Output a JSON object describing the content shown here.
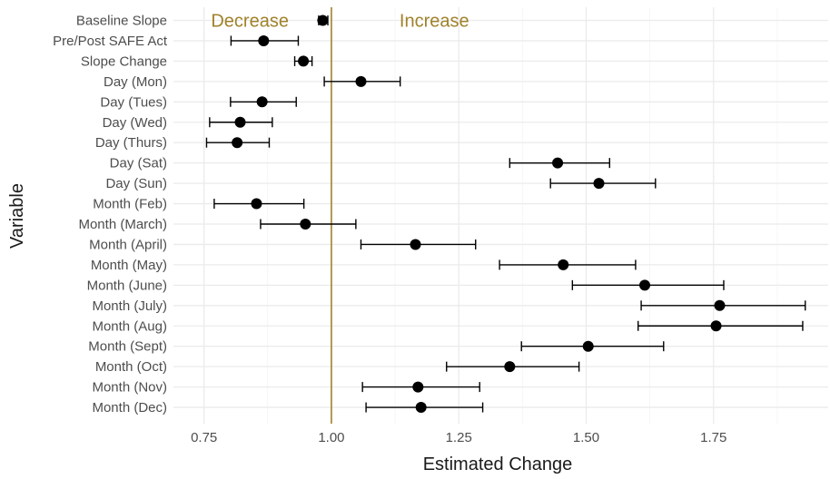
{
  "chart_data": {
    "type": "scatter",
    "subtype": "forest-plot",
    "xlabel": "Estimated Change",
    "ylabel": "Variable",
    "xlim": [
      0.69,
      1.975
    ],
    "x_ticks": [
      0.75,
      1.0,
      1.25,
      1.5,
      1.75
    ],
    "x_tick_labels": [
      "0.75",
      "1.00",
      "1.25",
      "1.50",
      "1.75"
    ],
    "grid": true,
    "reference_line": {
      "x": 1.0,
      "color": "#a0822a"
    },
    "annotations": [
      {
        "text": "Decrease",
        "x": 0.84,
        "row": 0,
        "color": "#a0822a"
      },
      {
        "text": "Increase",
        "x": 1.202,
        "row": 0,
        "color": "#a0822a"
      }
    ],
    "variables": [
      {
        "label": "Baseline Slope",
        "estimate": 0.983,
        "lower": 0.975,
        "upper": 0.993
      },
      {
        "label": "Pre/Post SAFE Act",
        "estimate": 0.867,
        "lower": 0.803,
        "upper": 0.935
      },
      {
        "label": "Slope Change",
        "estimate": 0.945,
        "lower": 0.928,
        "upper": 0.962
      },
      {
        "label": "Day (Mon)",
        "estimate": 1.058,
        "lower": 0.986,
        "upper": 1.135
      },
      {
        "label": "Day (Tues)",
        "estimate": 0.864,
        "lower": 0.802,
        "upper": 0.931
      },
      {
        "label": "Day (Wed)",
        "estimate": 0.821,
        "lower": 0.761,
        "upper": 0.884
      },
      {
        "label": "Day (Thurs)",
        "estimate": 0.815,
        "lower": 0.755,
        "upper": 0.878
      },
      {
        "label": "Day (Sat)",
        "estimate": 1.444,
        "lower": 1.35,
        "upper": 1.546
      },
      {
        "label": "Day (Sun)",
        "estimate": 1.525,
        "lower": 1.43,
        "upper": 1.636
      },
      {
        "label": "Month (Feb)",
        "estimate": 0.853,
        "lower": 0.77,
        "upper": 0.946
      },
      {
        "label": "Month (March)",
        "estimate": 0.949,
        "lower": 0.861,
        "upper": 1.048
      },
      {
        "label": "Month (April)",
        "estimate": 1.165,
        "lower": 1.058,
        "upper": 1.283
      },
      {
        "label": "Month (May)",
        "estimate": 1.455,
        "lower": 1.33,
        "upper": 1.597
      },
      {
        "label": "Month (June)",
        "estimate": 1.615,
        "lower": 1.473,
        "upper": 1.77
      },
      {
        "label": "Month (July)",
        "estimate": 1.762,
        "lower": 1.608,
        "upper": 1.93
      },
      {
        "label": "Month (Aug)",
        "estimate": 1.755,
        "lower": 1.602,
        "upper": 1.925
      },
      {
        "label": "Month (Sept)",
        "estimate": 1.504,
        "lower": 1.373,
        "upper": 1.652
      },
      {
        "label": "Month (Oct)",
        "estimate": 1.35,
        "lower": 1.226,
        "upper": 1.486
      },
      {
        "label": "Month (Nov)",
        "estimate": 1.17,
        "lower": 1.061,
        "upper": 1.291
      },
      {
        "label": "Month (Dec)",
        "estimate": 1.176,
        "lower": 1.068,
        "upper": 1.297
      }
    ]
  }
}
